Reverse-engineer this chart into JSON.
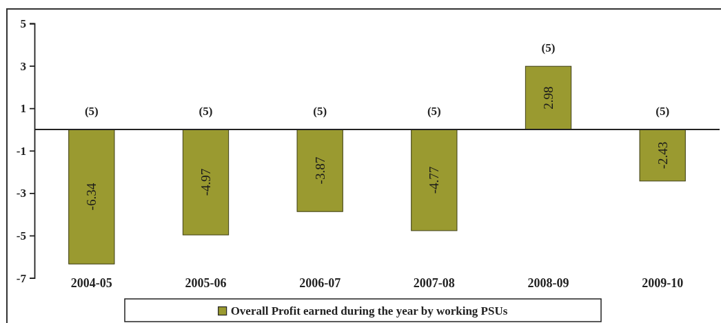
{
  "chart_data": {
    "type": "bar",
    "categories": [
      "2004-05",
      "2005-06",
      "2006-07",
      "2007-08",
      "2008-09",
      "2009-10"
    ],
    "series": [
      {
        "name": "Overall Profit earned during the year by working PSUs",
        "color": "#9a9a30",
        "values": [
          -6.34,
          -4.97,
          -3.87,
          -4.77,
          2.98,
          -2.43
        ]
      }
    ],
    "ylim": [
      -7,
      5
    ],
    "yticks": [
      -7,
      -5,
      -3,
      -1,
      1,
      3,
      5
    ],
    "data_labels": true,
    "legend": "bottom",
    "annotations": [
      {
        "text": "(5)",
        "x": "2004-05",
        "y": 0
      },
      {
        "text": "(5)",
        "x": "2005-06",
        "y": 0
      },
      {
        "text": "(5)",
        "x": "2006-07",
        "y": 0
      },
      {
        "text": "(5)",
        "x": "2007-08",
        "y": 0
      },
      {
        "text": "(5)",
        "x": "2008-09",
        "y": 2.98
      },
      {
        "text": "(5)",
        "x": "2009-10",
        "y": 0
      }
    ]
  }
}
